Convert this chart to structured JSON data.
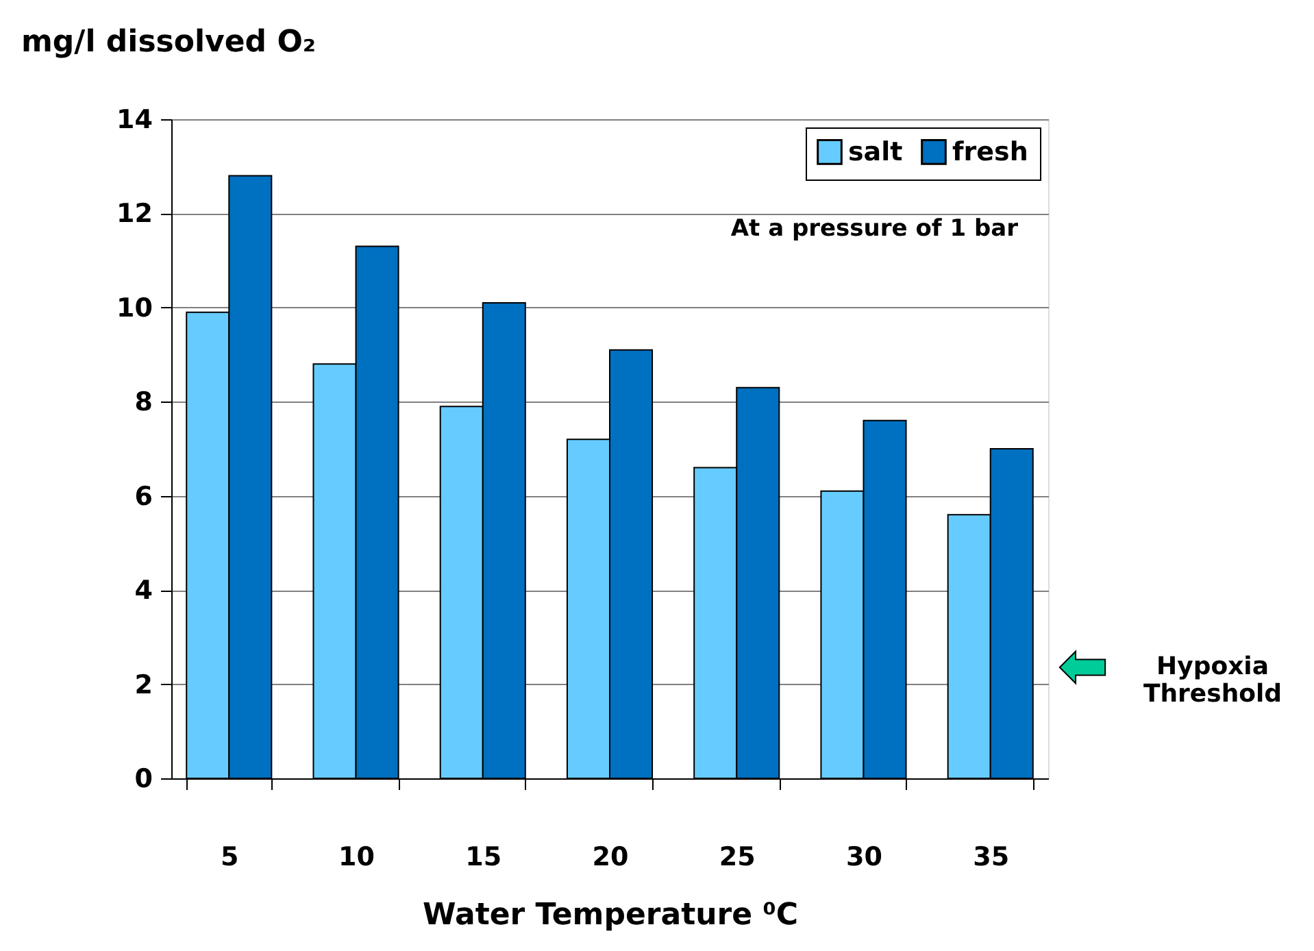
{
  "chart_data": {
    "type": "bar",
    "ylabel": "mg/l dissolved O₂",
    "xlabel": "Water Temperature ⁰C",
    "categories": [
      "5",
      "10",
      "15",
      "20",
      "25",
      "30",
      "35"
    ],
    "series": [
      {
        "name": "salt",
        "color": "#66ccff",
        "values": [
          9.9,
          8.8,
          7.9,
          7.2,
          6.6,
          6.1,
          5.6
        ]
      },
      {
        "name": "fresh",
        "color": "#0070c0",
        "values": [
          12.8,
          11.3,
          10.1,
          9.1,
          8.3,
          7.6,
          7.0
        ]
      }
    ],
    "ylim": [
      0,
      14
    ],
    "yticks": [
      0,
      2,
      4,
      6,
      8,
      10,
      12,
      14
    ],
    "grid": "y",
    "legend": "top right",
    "annotations": [
      "At a pressure of 1 bar",
      "Hypoxia Threshold"
    ]
  }
}
